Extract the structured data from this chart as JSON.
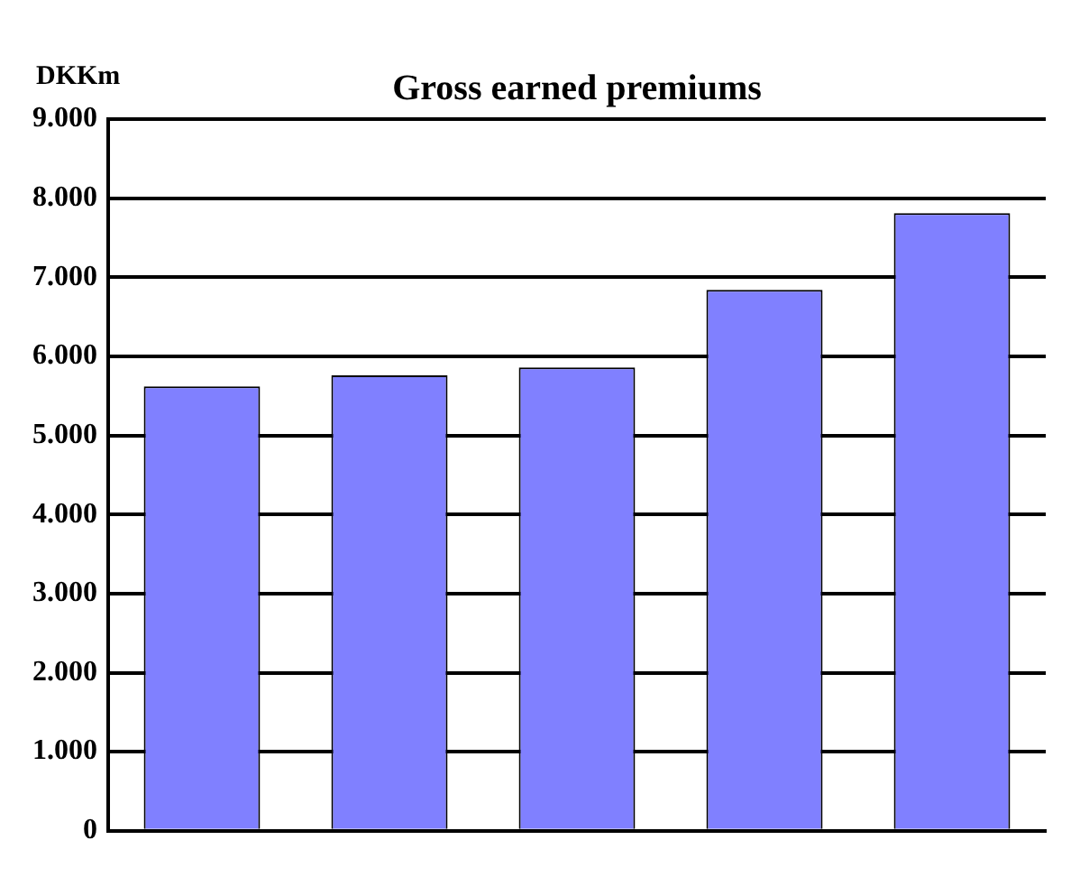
{
  "chart_data": {
    "type": "bar",
    "title": "Gross earned premiums",
    "ylabel": "DKKm",
    "categories": [
      null,
      null,
      null,
      null,
      null
    ],
    "values": [
      5620,
      5760,
      5860,
      6840,
      7810
    ],
    "color": "#8080ff",
    "ylim": [
      0,
      9000
    ],
    "yticks": [
      0,
      {
        "value": 1000,
        "label": "1.000"
      },
      {
        "value": 2000,
        "label": "2.000"
      },
      {
        "value": 3000,
        "label": "3.000"
      },
      {
        "value": 4000,
        "label": "4.000"
      },
      {
        "value": 5000,
        "label": "5.000"
      },
      {
        "value": 6000,
        "label": "6.000"
      },
      {
        "value": 7000,
        "label": "7.000"
      },
      {
        "value": 8000,
        "label": "8.000"
      },
      {
        "value": 9000,
        "label": "9.000"
      }
    ],
    "grid": "y"
  }
}
